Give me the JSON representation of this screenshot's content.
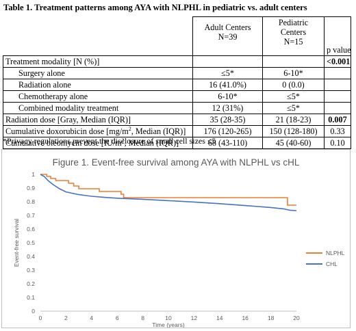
{
  "table_title": "Table 1. Treatment patterns among AYA with NLPHL in pediatric vs. adult centers",
  "table": {
    "headers": {
      "adult_l1": "Adult Centers",
      "adult_l2": "N=39",
      "ped_l1": "Pediatric",
      "ped_l2": "Centers",
      "ped_l3": "N=15",
      "pvalue": "p value"
    },
    "rows": [
      {
        "label": "Treatment modality [N (%)]",
        "adult": "",
        "ped": "",
        "p": "<0.001"
      },
      {
        "label": "Surgery alone",
        "adult": "≤5*",
        "ped": "6-10*",
        "p": ""
      },
      {
        "label": "Radiation alone",
        "adult": "16 (41.0%)",
        "ped": "0 (0.0)",
        "p": ""
      },
      {
        "label": "Chemotherapy alone",
        "adult": "6-10*",
        "ped": "≤5*",
        "p": ""
      },
      {
        "label": "Combined modality treatment",
        "adult": "12 (31%)",
        "ped": "≤5*",
        "p": ""
      },
      {
        "label": "Radiation dose [Gray, Median (IQR)]",
        "adult": "35 (28-35)",
        "ped": "21 (18-23)",
        "p": "0.007"
      },
      {
        "label_pre": "Cumulative doxorubicin dose [mg/m",
        "label_sup": "2",
        "label_post": ", Median (IQR)]",
        "adult": "176 (120-265)",
        "ped": "150 (128-180)",
        "p": "0.33"
      },
      {
        "label_pre": "Cumulative bleomycin dose [IU/m",
        "label_sup": "2",
        "label_post": ", Median (IQR)]",
        "adult": "68 (43-110)",
        "ped": "45 (40-60)",
        "p": "0.10"
      }
    ]
  },
  "footnote": "*Privacy regulations prevent the disclosure of small cell sizes ≤5",
  "chart_data": {
    "type": "line",
    "title": "Figure 1. Event-free survival among AYA with NLPHL vs cHL",
    "xlabel": "Time (years)",
    "ylabel": "Event-free survival",
    "xlim": [
      0,
      20
    ],
    "ylim": [
      0,
      1
    ],
    "x_ticks": [
      "0",
      "2",
      "4",
      "6",
      "8",
      "10",
      "12",
      "14",
      "16",
      "18",
      "20"
    ],
    "y_ticks": [
      "0",
      "0.1",
      "0.2",
      "0.3",
      "0.4",
      "0.5",
      "0.6",
      "0.7",
      "0.8",
      "0.9",
      "1"
    ],
    "legend_position": "right",
    "grid": false,
    "series": [
      {
        "name": "NLPHL",
        "color": "#ed7d31",
        "step": true,
        "points": [
          [
            0,
            1.0
          ],
          [
            0.5,
            0.985
          ],
          [
            0.8,
            0.97
          ],
          [
            1.2,
            0.955
          ],
          [
            2.2,
            0.935
          ],
          [
            2.6,
            0.915
          ],
          [
            3.0,
            0.895
          ],
          [
            4.6,
            0.875
          ],
          [
            6.3,
            0.855
          ],
          [
            6.5,
            0.83
          ],
          [
            19.2,
            0.83
          ],
          [
            19.3,
            0.775
          ],
          [
            20,
            0.775
          ]
        ]
      },
      {
        "name": "CHL",
        "color": "#4472c4",
        "step": false,
        "points": [
          [
            0,
            1.0
          ],
          [
            0.3,
            0.985
          ],
          [
            0.6,
            0.955
          ],
          [
            1.0,
            0.925
          ],
          [
            1.5,
            0.895
          ],
          [
            2.0,
            0.872
          ],
          [
            3.0,
            0.852
          ],
          [
            4.0,
            0.84
          ],
          [
            5.0,
            0.832
          ],
          [
            6.0,
            0.826
          ],
          [
            8.0,
            0.818
          ],
          [
            10.0,
            0.808
          ],
          [
            12.0,
            0.798
          ],
          [
            14.0,
            0.786
          ],
          [
            16.0,
            0.772
          ],
          [
            18.0,
            0.758
          ],
          [
            19.0,
            0.748
          ],
          [
            19.5,
            0.738
          ],
          [
            20.0,
            0.735
          ]
        ]
      }
    ]
  }
}
